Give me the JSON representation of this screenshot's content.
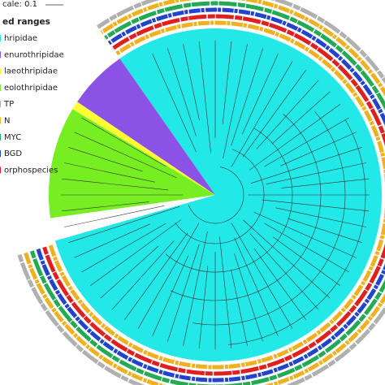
{
  "scale": {
    "label": "cale: 0.1"
  },
  "legend": {
    "title": "ed ranges",
    "entries": [
      "hripidae",
      "enurothripidae",
      "laeothripidae",
      "eolothripidae",
      "TP",
      "N",
      "MYC",
      "BGD",
      "orphospecies"
    ]
  }
}
